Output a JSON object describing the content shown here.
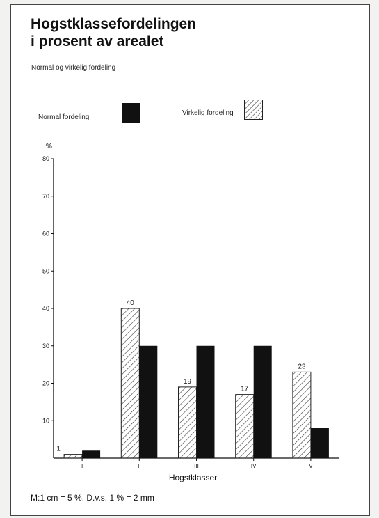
{
  "page": {
    "title_line1": "Hogstklassefordelingen",
    "title_line2": "i prosent av arealet",
    "subtitle": "Normal og virkelig fordeling",
    "footer": "M:1 cm = 5 %. D.v.s. 1 % = 2 mm"
  },
  "legend": {
    "normal_label": "Normal fordeling",
    "actual_label": "Virkelig fordeling"
  },
  "chart_data": {
    "type": "bar",
    "title": "Hogstklassefordelingen i prosent av arealet",
    "subtitle": "Normal og virkelig fordeling",
    "xlabel": "Hogstklasser",
    "ylabel": "%",
    "categories": [
      "I",
      "II",
      "III",
      "IV",
      "V"
    ],
    "ylim": [
      0,
      80
    ],
    "yticks": [
      10,
      20,
      30,
      40,
      50,
      60,
      70,
      80
    ],
    "series": [
      {
        "name": "Virkelig fordeling",
        "values": [
          1,
          40,
          19,
          17,
          23
        ],
        "pattern": "hatched"
      },
      {
        "name": "Normal fordeling",
        "values": [
          2,
          30,
          30,
          30,
          8
        ],
        "pattern": "solid"
      }
    ],
    "data_labels": [
      "1",
      "40",
      "19",
      "17",
      "23"
    ],
    "colors": {
      "solid": "#111111",
      "hatch": "#333333"
    }
  }
}
